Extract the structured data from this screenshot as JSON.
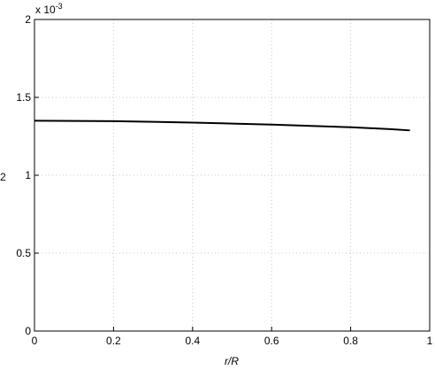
{
  "chart_data": {
    "type": "line",
    "x_label": "r/R",
    "y_label": "2",
    "y_exponent": {
      "base": "x 10",
      "power": "-3"
    },
    "x": [
      0,
      0.1,
      0.2,
      0.3,
      0.4,
      0.5,
      0.6,
      0.7,
      0.8,
      0.9,
      0.95
    ],
    "series": [
      {
        "color": "#000000",
        "values": [
          1.35,
          1.349,
          1.347,
          1.343,
          1.338,
          1.332,
          1.325,
          1.317,
          1.308,
          1.296,
          1.288
        ]
      }
    ],
    "xlim": [
      0,
      1
    ],
    "xticks": [
      0,
      0.2,
      0.4,
      0.6,
      0.8,
      1
    ],
    "ylim": [
      0,
      2
    ],
    "yticks": [
      0,
      0.5,
      1,
      1.5,
      2
    ],
    "grid": true
  }
}
